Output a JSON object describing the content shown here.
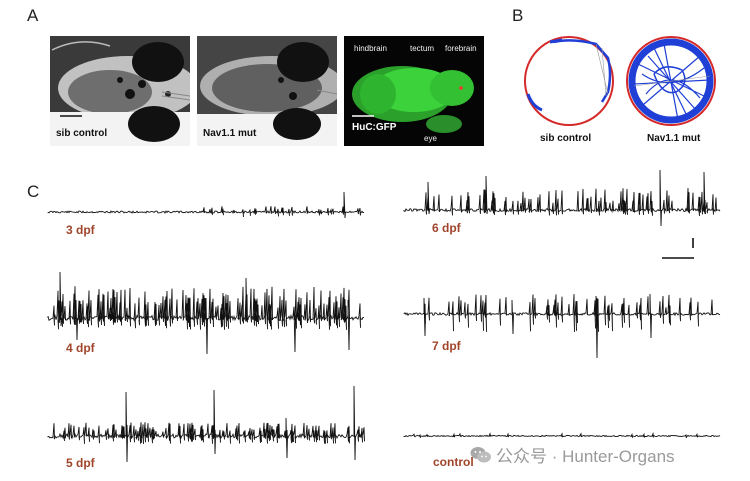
{
  "panels": {
    "a": {
      "letter": "A",
      "captions": {
        "sib": "sib control",
        "mut": "Nav1.1 mut",
        "gfp": "HuC:GFP"
      },
      "fluor_labels": {
        "hindbrain": "hindbrain",
        "tectum": "tectum",
        "forebrain": "forebrain",
        "eye": "eye"
      }
    },
    "b": {
      "letter": "B",
      "captions": {
        "sib": "sib control",
        "mut": "Nav1.1 mut"
      }
    },
    "c": {
      "letter": "C",
      "traces": [
        {
          "label": "3 dpf"
        },
        {
          "label": "4 dpf"
        },
        {
          "label": "5 dpf"
        },
        {
          "label": "6 dpf"
        },
        {
          "label": "7 dpf"
        },
        {
          "label": "control"
        }
      ]
    }
  },
  "watermark": {
    "text": "公众号 · Hunter-Organs"
  },
  "colors": {
    "dpf_label": "#a0452a",
    "track": "#1f3fd6",
    "dish_rim": "#d42a2a",
    "gfp": "#3bd23b"
  }
}
